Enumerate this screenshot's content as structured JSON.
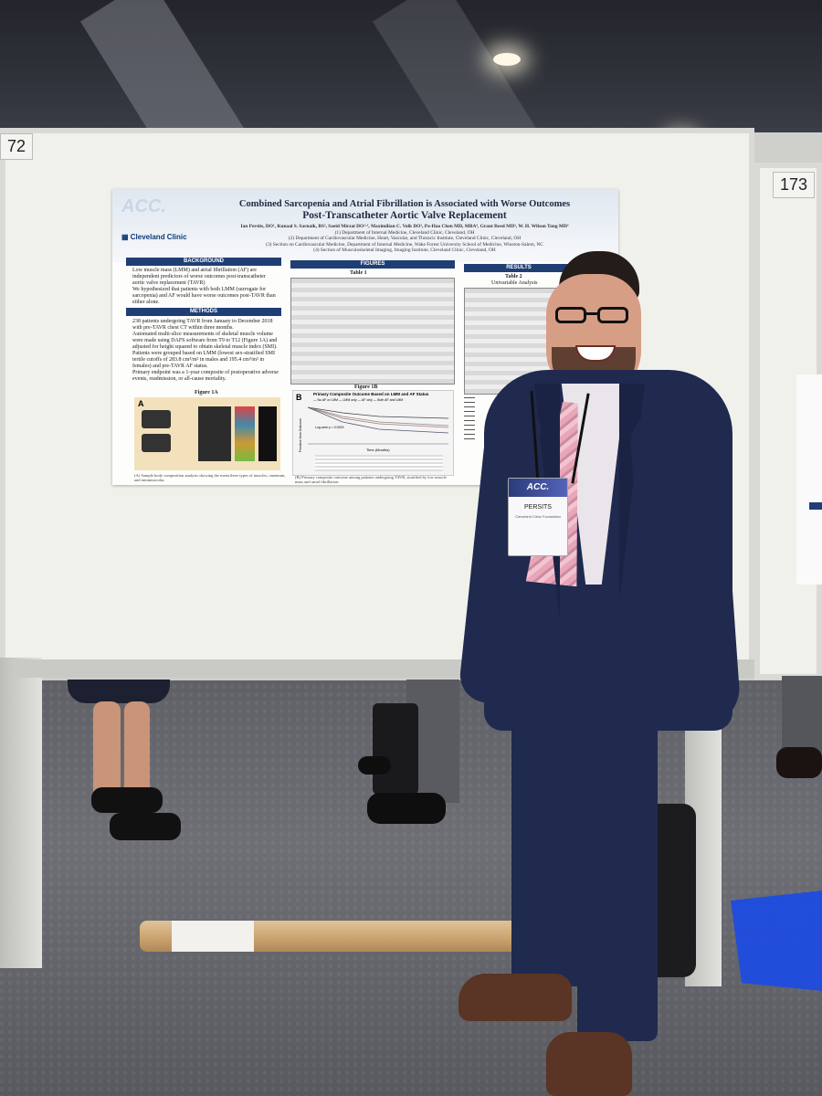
{
  "booths": {
    "left_number": "72",
    "right_number": "173"
  },
  "poster": {
    "watermark": "ACC.",
    "title_line1": "Combined Sarcopenia and Atrial Fibrillation is Associated with Worse Outcomes",
    "title_line2": "Post-Transcatheter Aortic Valve Replacement",
    "authors": "Ian Persits, DO¹, Kunaal S. Sarnaik, BS², Saeid Mirzai DO²·³, Maximilian C. Volk DO², Po-Hao Chen MD, MBA⁴, Grant Reed MD³, W. H. Wilson Tang MD³",
    "affiliations": [
      "(1) Department of Internal Medicine, Cleveland Clinic, Cleveland, OH",
      "(2) Department of Cardiovascular Medicine, Heart, Vascular, and Thoracic Institute, Cleveland Clinic, Cleveland, OH",
      "(3) Section on Cardiovascular Medicine, Department of Internal Medicine, Wake Forest University School of Medicine, Winston-Salem, NC",
      "(4) Section of Musculoskeletal Imaging, Imaging Institute, Cleveland Clinic, Cleveland, OH"
    ],
    "brand": "Cleveland Clinic",
    "sections": {
      "background": "BACKGROUND",
      "methods": "METHODS",
      "figures": "FIGURES",
      "results": "RESULTS"
    },
    "background_text": [
      "Low muscle mass (LMM) and atrial fibrillation (AF) are independent predictors of worse outcomes post-transcatheter aortic valve replacement (TAVR)",
      "We hypothesized that patients with both LMM (surrogate for sarcopenia) and AF would have worse outcomes post-TAVR than either alone."
    ],
    "methods_text": [
      "238 patients undergoing TAVR from January to December 2018 with pre-TAVR chest CT within three months.",
      "Automated multi-slice measurements of skeletal muscle volume were made using DAFS software from T9 to T12 (Figure 1A) and adjusted for height squared to obtain skeletal muscle index (SMI).",
      "Patients were grouped based on LMM (lowest sex-stratified SMI tertile cutoffs of 283.8 cm³/m² in males and 195.4 cm³/m² in females) and pre-TAVR AF status.",
      "Primary endpoint was a 1-year composite of postoperative adverse events, readmission, or all-cause mortality."
    ],
    "table1_label": "Table 1",
    "table2_label": "Table 2",
    "univariable_label": "Univariable Analysis",
    "figure1a_label": "Figure 1A",
    "figure1b_label": "Figure 1B",
    "figure_a_letter": "A",
    "figure_b_letter": "B",
    "km_title": "Primary Composite Outcome Based on LMM and AF Status",
    "km_legend": "— No AF or LMM   — LMM only   — AF only   — Both AF and LMM",
    "km_ylabel": "Freedom from Outcome",
    "km_xlabel": "Time (Months)",
    "km_logrank": "Log-rank p = 0.0023",
    "caption_a": "(A) Sample body composition analysis showing the mean three types of muscles, omentum, and intramuscular.",
    "caption_b": "(B) Primary composite outcome among patients undergoing TAVR, stratified by low muscle mass and atrial fibrillation."
  },
  "badge": {
    "event": "ACC.",
    "name": "PERSITS",
    "org": "Cleveland Clinic Foundation"
  },
  "colors": {
    "poster_navy": "#1f3f74",
    "suit": "#1f2a4e",
    "tie": "#e8a6b8",
    "bin": "#1d4ce0"
  }
}
